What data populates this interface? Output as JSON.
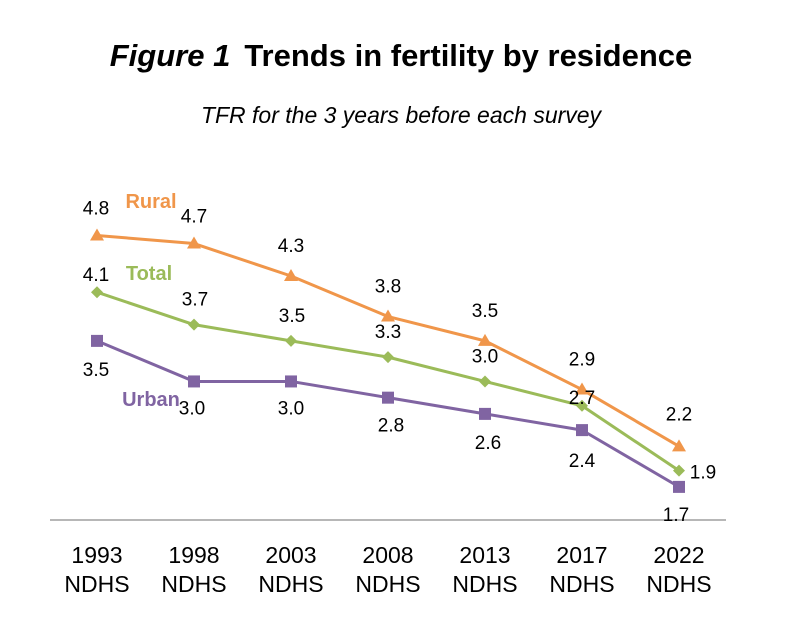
{
  "figure": {
    "number_label": "Figure 1",
    "title": "Trends in fertility by residence",
    "subtitle": "TFR for the 3 years before each survey"
  },
  "chart_data": {
    "type": "line",
    "categories": [
      [
        "1993",
        "NDHS"
      ],
      [
        "1998",
        "NDHS"
      ],
      [
        "2003",
        "NDHS"
      ],
      [
        "2008",
        "NDHS"
      ],
      [
        "2013",
        "NDHS"
      ],
      [
        "2017",
        "NDHS"
      ],
      [
        "2022",
        "NDHS"
      ]
    ],
    "ylim": [
      0,
      6
    ],
    "grid": false,
    "series": [
      {
        "name": "Rural",
        "color": "#F0964A",
        "marker": "triangle",
        "values": [
          4.8,
          4.7,
          4.3,
          3.8,
          3.5,
          2.9,
          2.2
        ],
        "labels": [
          "4.8",
          "4.7",
          "4.3",
          "3.8",
          "3.5",
          "2.9",
          "2.2"
        ]
      },
      {
        "name": "Total",
        "color": "#9BBB59",
        "marker": "diamond",
        "values": [
          4.1,
          3.7,
          3.5,
          3.3,
          3.0,
          2.7,
          1.9
        ],
        "labels": [
          "4.1",
          "3.7",
          "3.5",
          "3.3",
          "3.0",
          "2.7",
          "1.9"
        ]
      },
      {
        "name": "Urban",
        "color": "#8064A2",
        "marker": "square",
        "values": [
          3.5,
          3.0,
          3.0,
          2.8,
          2.6,
          2.4,
          1.7
        ],
        "labels": [
          "3.5",
          "3.0",
          "3.0",
          "2.8",
          "2.6",
          "2.4",
          "1.7"
        ]
      }
    ]
  }
}
